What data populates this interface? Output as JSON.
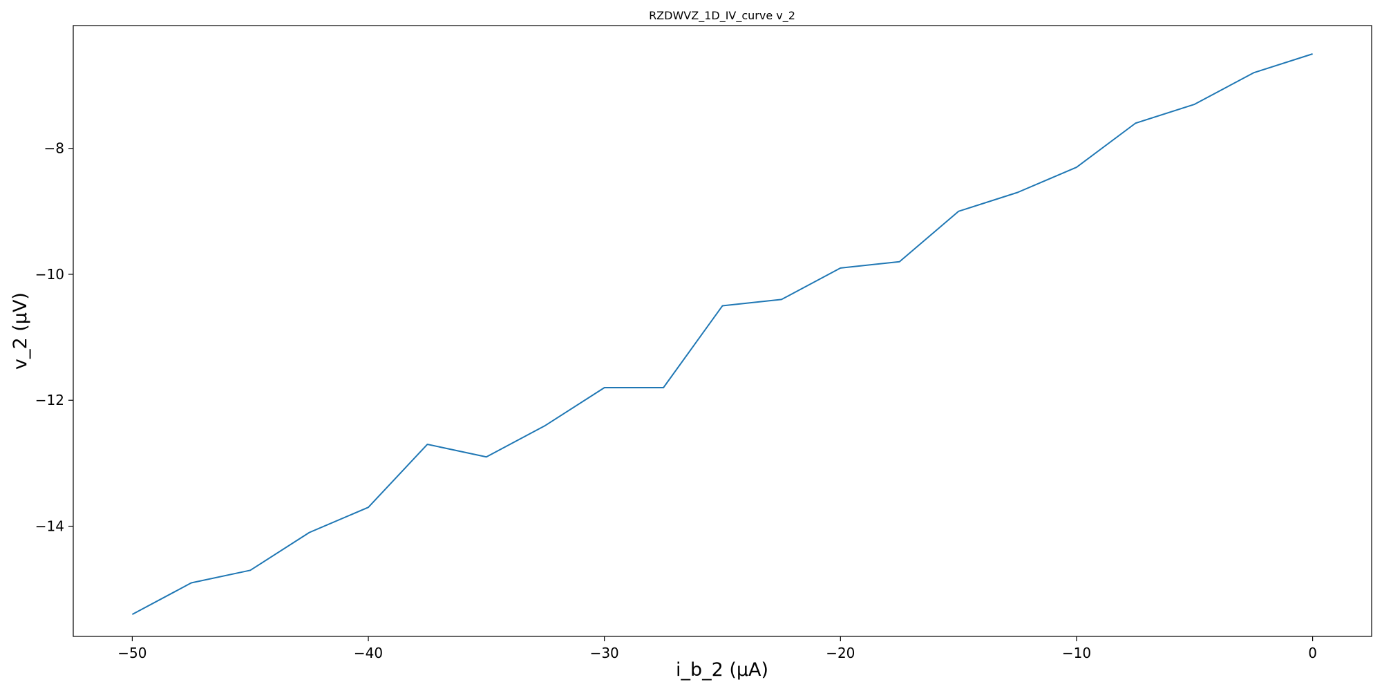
{
  "chart_data": {
    "type": "line",
    "title": "RZDWVZ_1D_IV_curve v_2",
    "xlabel": "i_b_2 (μA)",
    "ylabel": "v_2 (μV)",
    "xlim": [
      -52.5,
      2.5
    ],
    "ylim": [
      -15.75,
      -6.05
    ],
    "xticks": [
      -50,
      -40,
      -30,
      -20,
      -10,
      0
    ],
    "xtick_labels": [
      "−50",
      "−40",
      "−30",
      "−20",
      "−10",
      "0"
    ],
    "yticks": [
      -8,
      -10,
      -12,
      -14
    ],
    "ytick_labels": [
      "−8",
      "−10",
      "−12",
      "−14"
    ],
    "grid": false,
    "series": [
      {
        "color": "#1f77b4",
        "x": [
          -50,
          -47.5,
          -45,
          -42.5,
          -40,
          -37.5,
          -35,
          -32.5,
          -30,
          -27.5,
          -25,
          -22.5,
          -20,
          -17.5,
          -15,
          -12.5,
          -10,
          -7.5,
          -5,
          -2.5,
          0
        ],
        "y": [
          -15.4,
          -14.9,
          -14.7,
          -14.1,
          -13.7,
          -12.7,
          -12.9,
          -12.4,
          -11.8,
          -11.8,
          -10.5,
          -10.4,
          -9.9,
          -9.8,
          -9.0,
          -8.7,
          -8.3,
          -7.6,
          -7.3,
          -6.8,
          -6.5
        ]
      }
    ]
  }
}
